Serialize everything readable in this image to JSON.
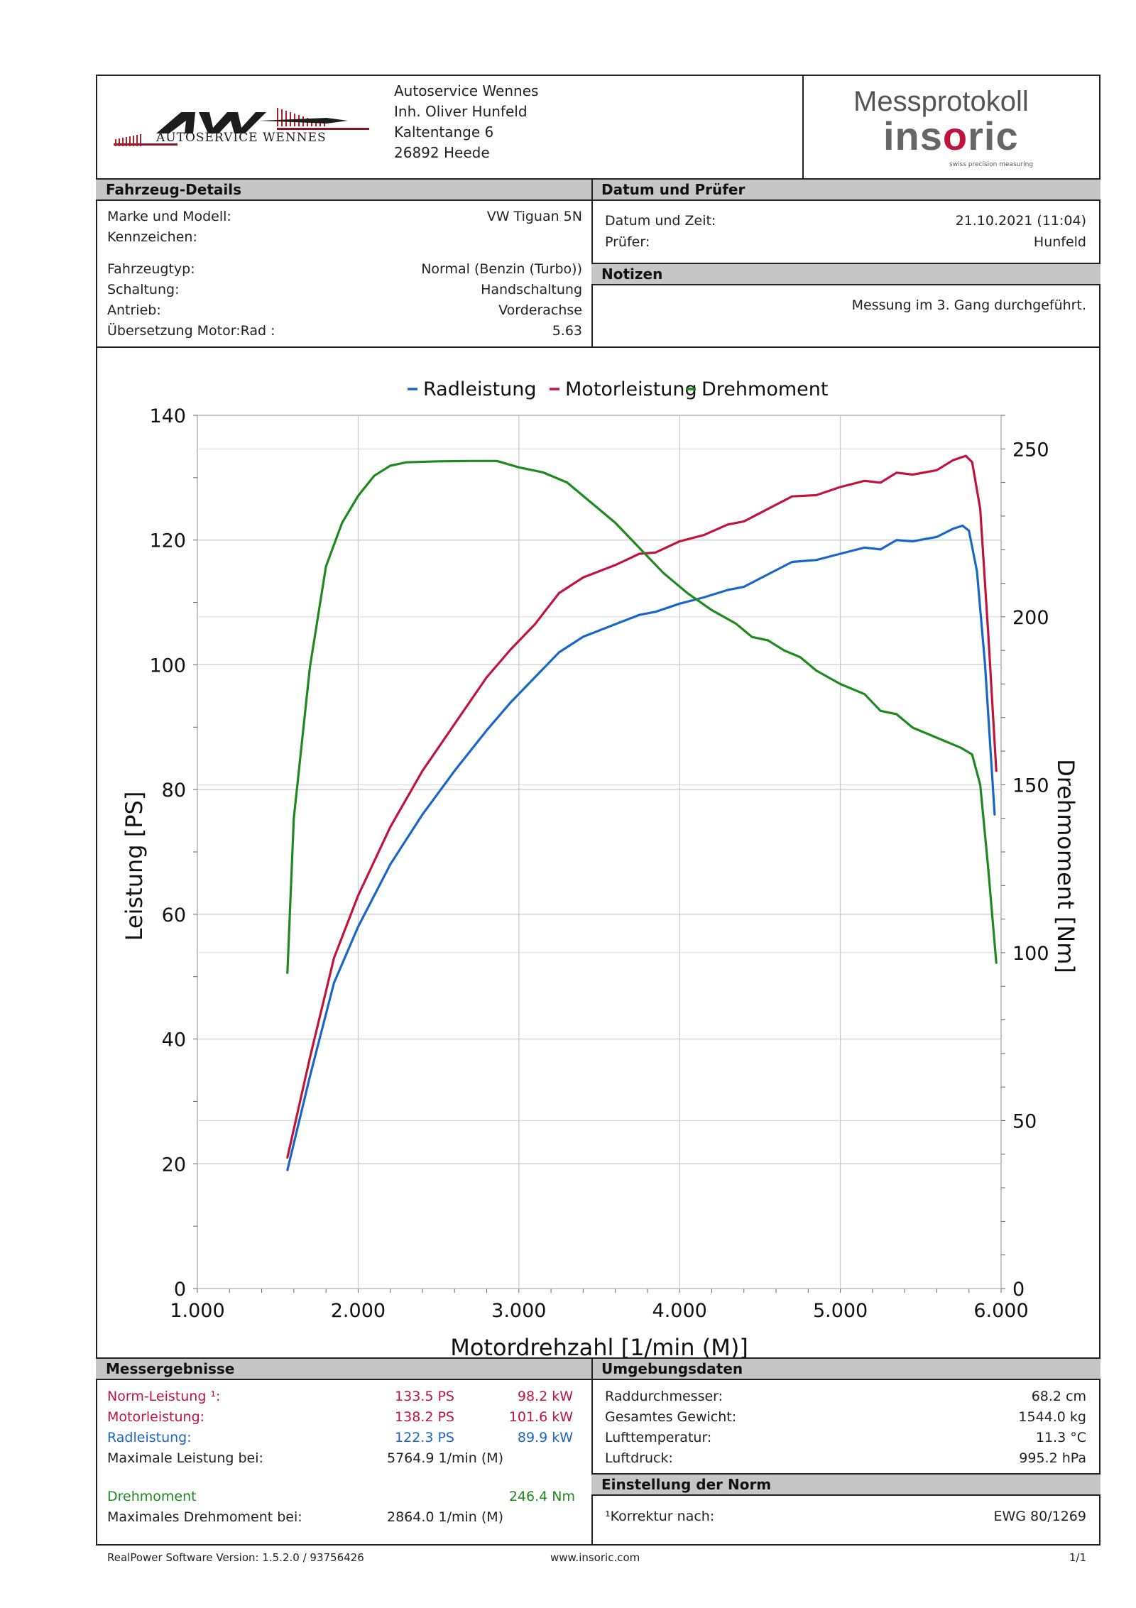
{
  "header": {
    "logo_text": "AUTOSERVICE WENNES",
    "address": [
      "Autoservice Wennes",
      "Inh. Oliver Hunfeld",
      "Kaltentange 6",
      "26892 Heede"
    ],
    "brand_title": "Messprotokoll",
    "brand_name_pre": "ins",
    "brand_name_o": "o",
    "brand_name_post": "ric",
    "brand_tagline": "swiss precision measuring"
  },
  "vehicle": {
    "section_title": "Fahrzeug-Details",
    "rows": [
      {
        "label": "Marke und Modell:",
        "value": "VW Tiguan 5N"
      },
      {
        "label": "Kennzeichen:",
        "value": ""
      },
      {
        "label": "Fahrzeugtyp:",
        "value": "Normal (Benzin (Turbo))"
      },
      {
        "label": "Schaltung:",
        "value": "Handschaltung"
      },
      {
        "label": "Antrieb:",
        "value": "Vorderachse"
      },
      {
        "label": "Übersetzung Motor:Rad :",
        "value": "5.63"
      }
    ]
  },
  "date_tester": {
    "section_title": "Datum und Prüfer",
    "rows": [
      {
        "label": "Datum und Zeit:",
        "value": "21.10.2021 (11:04)"
      },
      {
        "label": "Prüfer:",
        "value": "Hunfeld"
      }
    ]
  },
  "notes": {
    "section_title": "Notizen",
    "text": "Messung im 3. Gang durchgeführt."
  },
  "chart_data": {
    "type": "line",
    "title": "",
    "xlabel": "Motordrehzahl [1/min (M)]",
    "ylabel_left": "Leistung [PS]",
    "ylabel_right": "Drehmoment [Nm]",
    "xlim": [
      1000,
      6000
    ],
    "ylim_left": [
      0,
      140
    ],
    "ylim_right": [
      0,
      260
    ],
    "x_ticks": [
      "1.000",
      "2.000",
      "3.000",
      "4.000",
      "5.000",
      "6.000"
    ],
    "y_left_ticks": [
      "0",
      "20",
      "40",
      "60",
      "80",
      "100",
      "120",
      "140"
    ],
    "y_right_ticks": [
      "0",
      "50",
      "100",
      "150",
      "200",
      "250"
    ],
    "grid": true,
    "legend_position": "top-center",
    "series": [
      {
        "name": "Radleistung",
        "axis": "left",
        "color": "#1a66c8",
        "points": [
          [
            1560,
            19
          ],
          [
            1700,
            34
          ],
          [
            1850,
            49
          ],
          [
            2000,
            58
          ],
          [
            2200,
            68
          ],
          [
            2400,
            76
          ],
          [
            2600,
            83
          ],
          [
            2800,
            89.5
          ],
          [
            2950,
            94
          ],
          [
            3100,
            98
          ],
          [
            3250,
            102
          ],
          [
            3400,
            104.5
          ],
          [
            3600,
            106.5
          ],
          [
            3750,
            108
          ],
          [
            3850,
            108.5
          ],
          [
            4000,
            109.8
          ],
          [
            4150,
            110.8
          ],
          [
            4300,
            112
          ],
          [
            4400,
            112.5
          ],
          [
            4550,
            114.5
          ],
          [
            4700,
            116.5
          ],
          [
            4850,
            116.8
          ],
          [
            5000,
            117.8
          ],
          [
            5150,
            118.8
          ],
          [
            5250,
            118.5
          ],
          [
            5350,
            120
          ],
          [
            5450,
            119.8
          ],
          [
            5600,
            120.5
          ],
          [
            5700,
            121.8
          ],
          [
            5760,
            122.3
          ],
          [
            5800,
            121.5
          ],
          [
            5850,
            115
          ],
          [
            5900,
            100
          ],
          [
            5960,
            76
          ]
        ]
      },
      {
        "name": "Motorleistung",
        "axis": "left",
        "color": "#c0143c",
        "points": [
          [
            1560,
            21
          ],
          [
            1700,
            37
          ],
          [
            1850,
            53
          ],
          [
            2000,
            63
          ],
          [
            2200,
            74
          ],
          [
            2400,
            83
          ],
          [
            2600,
            90.5
          ],
          [
            2800,
            98
          ],
          [
            2950,
            102.5
          ],
          [
            3100,
            106.5
          ],
          [
            3250,
            111.5
          ],
          [
            3400,
            114
          ],
          [
            3600,
            116
          ],
          [
            3750,
            117.8
          ],
          [
            3850,
            118
          ],
          [
            4000,
            119.8
          ],
          [
            4150,
            120.8
          ],
          [
            4300,
            122.5
          ],
          [
            4400,
            123
          ],
          [
            4550,
            125
          ],
          [
            4700,
            127
          ],
          [
            4850,
            127.2
          ],
          [
            5000,
            128.5
          ],
          [
            5150,
            129.5
          ],
          [
            5250,
            129.2
          ],
          [
            5350,
            130.8
          ],
          [
            5450,
            130.5
          ],
          [
            5600,
            131.2
          ],
          [
            5700,
            132.8
          ],
          [
            5780,
            133.5
          ],
          [
            5820,
            132.5
          ],
          [
            5870,
            125
          ],
          [
            5920,
            105
          ],
          [
            5970,
            83
          ]
        ]
      },
      {
        "name": "Drehmoment",
        "axis": "right",
        "color": "#1e8a1e",
        "points": [
          [
            1560,
            94
          ],
          [
            1600,
            140
          ],
          [
            1700,
            185
          ],
          [
            1800,
            215
          ],
          [
            1900,
            228
          ],
          [
            2000,
            236
          ],
          [
            2100,
            242
          ],
          [
            2200,
            245
          ],
          [
            2300,
            246
          ],
          [
            2500,
            246.3
          ],
          [
            2700,
            246.4
          ],
          [
            2864,
            246.4
          ],
          [
            3000,
            244.5
          ],
          [
            3150,
            243
          ],
          [
            3300,
            240
          ],
          [
            3450,
            234
          ],
          [
            3600,
            228
          ],
          [
            3700,
            223
          ],
          [
            3800,
            218
          ],
          [
            3900,
            213
          ],
          [
            4050,
            207
          ],
          [
            4200,
            202
          ],
          [
            4350,
            198
          ],
          [
            4450,
            194
          ],
          [
            4550,
            193
          ],
          [
            4650,
            190
          ],
          [
            4750,
            188
          ],
          [
            4850,
            184
          ],
          [
            5000,
            180
          ],
          [
            5150,
            177
          ],
          [
            5250,
            172
          ],
          [
            5350,
            171
          ],
          [
            5450,
            167
          ],
          [
            5550,
            165
          ],
          [
            5650,
            163
          ],
          [
            5750,
            161
          ],
          [
            5820,
            159
          ],
          [
            5870,
            150
          ],
          [
            5920,
            125
          ],
          [
            5970,
            97
          ]
        ]
      }
    ]
  },
  "results": {
    "section_title": "Messergebnisse",
    "norm": {
      "label": "Norm-Leistung ¹:",
      "ps": "133.5 PS",
      "kw": "98.2 kW"
    },
    "motor": {
      "label": "Motorleistung:",
      "ps": "138.2 PS",
      "kw": "101.6 kW"
    },
    "rad": {
      "label": "Radleistung:",
      "ps": "122.3 PS",
      "kw": "89.9 kW"
    },
    "max_power": {
      "label": "Maximale Leistung bei:",
      "value": "5764.9 1/min (M)"
    },
    "torque": {
      "label": "Drehmoment",
      "value": "246.4 Nm"
    },
    "max_torque": {
      "label": "Maximales Drehmoment bei:",
      "value": "2864.0 1/min (M)"
    }
  },
  "environment": {
    "section_title": "Umgebungsdaten",
    "rows": [
      {
        "label": "Raddurchmesser:",
        "value": "68.2 cm"
      },
      {
        "label": "Gesamtes Gewicht:",
        "value": "1544.0 kg"
      },
      {
        "label": "Lufttemperatur:",
        "value": "11.3 °C"
      },
      {
        "label": "Luftdruck:",
        "value": "995.2 hPa"
      }
    ]
  },
  "norm_setting": {
    "section_title": "Einstellung der Norm",
    "label": "¹Korrektur nach:",
    "value": "EWG 80/1269"
  },
  "footer": {
    "software": "RealPower Software Version: 1.5.2.0 / 93756426",
    "website": "www.insoric.com",
    "page": "1/1"
  }
}
